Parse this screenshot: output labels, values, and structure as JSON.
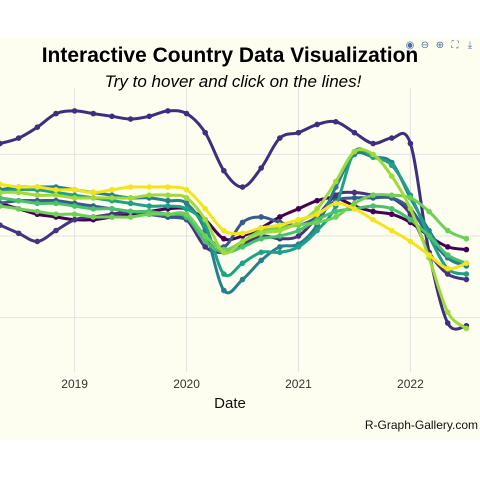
{
  "title": "Interactive Country Data Visualization",
  "subtitle": "Try to hover and click on the lines!",
  "caption": "R-Graph-Gallery.com",
  "modebar": [
    {
      "icon": "camera-icon",
      "glyph": "◉"
    },
    {
      "icon": "zoom-out-icon",
      "glyph": "⊖"
    },
    {
      "icon": "zoom-in-icon",
      "glyph": "⊕"
    },
    {
      "icon": "autoscale-icon",
      "glyph": "⛶"
    },
    {
      "icon": "download-icon",
      "glyph": "⤓"
    }
  ],
  "colors": {
    "background": "#fdfdf0",
    "grid": "#e2e2e2"
  },
  "chart_data": {
    "type": "line",
    "xlabel": "Date",
    "ylabel": "",
    "xlim": [
      "2018-05-01",
      "2022-08-15"
    ],
    "ylim": [
      0,
      100
    ],
    "grid": true,
    "legend": "none",
    "x_ticks": [
      "2019",
      "2020",
      "2021",
      "2022"
    ],
    "x": [
      "2018-05",
      "2018-07",
      "2018-09",
      "2018-11",
      "2019-01",
      "2019-03",
      "2019-05",
      "2019-07",
      "2019-09",
      "2019-11",
      "2020-01",
      "2020-03",
      "2020-05",
      "2020-07",
      "2020-09",
      "2020-11",
      "2021-01",
      "2021-03",
      "2021-05",
      "2021-07",
      "2021-09",
      "2021-11",
      "2022-01",
      "2022-03",
      "2022-05",
      "2022-07"
    ],
    "series": [
      {
        "color": "#3c2f80",
        "values": [
          84,
          86,
          90,
          95,
          96,
          95,
          94,
          93,
          94,
          96,
          95,
          88,
          74,
          68,
          75,
          86,
          88,
          91,
          92,
          88,
          84,
          86,
          84,
          44,
          18,
          17
        ]
      },
      {
        "color": "#440154",
        "values": [
          62,
          60,
          58,
          57,
          56,
          56,
          57,
          58,
          59,
          60,
          60,
          56,
          49,
          50,
          53,
          57,
          60,
          63,
          64,
          61,
          59,
          58,
          55,
          50,
          46,
          45
        ]
      },
      {
        "color": "#46327e",
        "values": [
          54,
          51,
          48,
          52,
          56,
          57,
          58,
          59,
          58,
          57,
          56,
          46,
          44,
          47,
          50,
          49,
          50,
          57,
          65,
          66,
          65,
          64,
          58,
          44,
          36,
          34
        ]
      },
      {
        "color": "#365c8d",
        "values": [
          62,
          63,
          63,
          63,
          62,
          61,
          60,
          59,
          58,
          57,
          56,
          50,
          46,
          55,
          57,
          55,
          54,
          57,
          63,
          64,
          64,
          64,
          60,
          50,
          42,
          40
        ]
      },
      {
        "color": "#277f8e",
        "values": [
          67,
          68,
          68,
          68,
          67,
          66,
          65,
          64,
          64,
          63,
          62,
          52,
          30,
          34,
          41,
          46,
          47,
          54,
          68,
          80,
          79,
          77,
          64,
          52,
          42,
          39
        ]
      },
      {
        "color": "#1fa187",
        "values": [
          66,
          67,
          67,
          66,
          65,
          64,
          63,
          62,
          61,
          61,
          60,
          54,
          36,
          40,
          44,
          44,
          46,
          52,
          61,
          81,
          79,
          76,
          65,
          50,
          38,
          36
        ]
      },
      {
        "color": "#4ac16d",
        "values": [
          64,
          63,
          62,
          62,
          61,
          60,
          60,
          59,
          59,
          58,
          57,
          48,
          44,
          46,
          49,
          50,
          52,
          56,
          59,
          60,
          61,
          60,
          56,
          50,
          43,
          40
        ]
      },
      {
        "color": "#70cf57",
        "values": [
          61,
          60,
          59,
          58,
          58,
          57,
          57,
          57,
          58,
          58,
          58,
          50,
          45,
          48,
          52,
          53,
          54,
          55,
          57,
          62,
          65,
          65,
          64,
          59,
          52,
          49
        ]
      },
      {
        "color": "#a0da39",
        "values": [
          66,
          66,
          65,
          65,
          64,
          64,
          64,
          64,
          65,
          65,
          64,
          56,
          44,
          48,
          51,
          52,
          55,
          60,
          70,
          81,
          80,
          72,
          60,
          42,
          22,
          16
        ]
      },
      {
        "color": "#f2e51d",
        "values": [
          69,
          68,
          68,
          67,
          67,
          66,
          67,
          68,
          68,
          68,
          67,
          60,
          52,
          51,
          53,
          54,
          56,
          58,
          62,
          60,
          56,
          52,
          48,
          43,
          38,
          40
        ]
      }
    ]
  }
}
